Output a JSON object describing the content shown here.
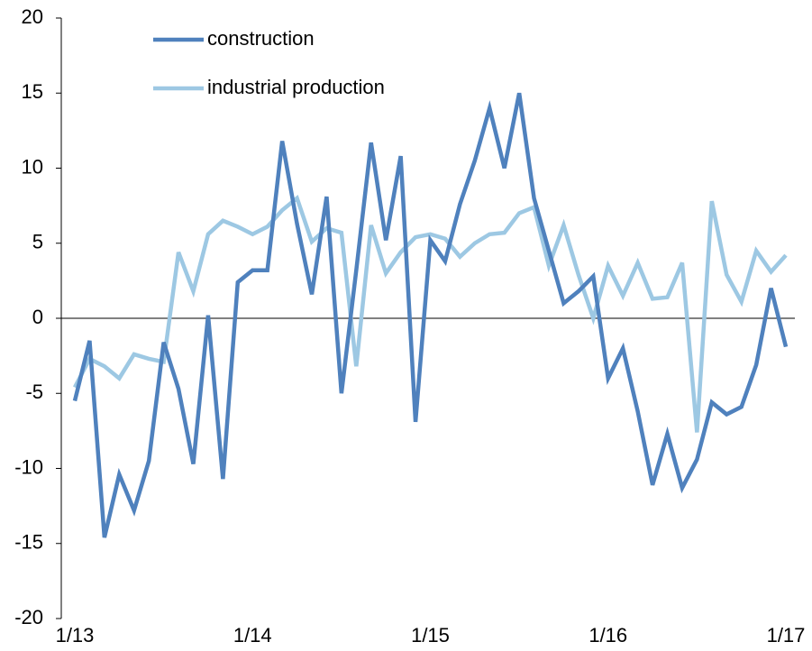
{
  "chart_data": {
    "type": "line",
    "categories": [
      "1/13",
      null,
      null,
      null,
      null,
      null,
      null,
      null,
      null,
      null,
      null,
      null,
      "1/14",
      null,
      null,
      null,
      null,
      null,
      null,
      null,
      null,
      null,
      null,
      null,
      "1/15",
      null,
      null,
      null,
      null,
      null,
      null,
      null,
      null,
      null,
      null,
      null,
      "1/16",
      null,
      null,
      null,
      null,
      null,
      null,
      null,
      null,
      null,
      null,
      null,
      "1/17"
    ],
    "series": [
      {
        "name": "construction",
        "color": "#4f81bd",
        "values": [
          -5.5,
          -1.5,
          -14.6,
          -10.4,
          -12.8,
          -9.5,
          -1.6,
          -4.7,
          -9.7,
          0.2,
          -10.7,
          2.4,
          3.2,
          3.2,
          11.8,
          6.3,
          1.6,
          8.1,
          -5,
          3.2,
          11.7,
          5.2,
          10.8,
          -6.9,
          5.2,
          3.8,
          7.6,
          10.5,
          14,
          10,
          15,
          8,
          4.5,
          1,
          1.8,
          2.8,
          -4,
          -2,
          -6.2,
          -11.1,
          -7.7,
          -11.3,
          -9.4,
          -5.6,
          -6.4,
          -5.9,
          -3.1,
          2,
          -1.9
        ]
      },
      {
        "name": "industrial production",
        "color": "#9dc8e3",
        "values": [
          -4.6,
          -2.7,
          -3.2,
          -4,
          -2.4,
          -2.7,
          -2.9,
          4.4,
          1.8,
          5.6,
          6.5,
          6.1,
          5.6,
          6.1,
          7.2,
          8,
          5.1,
          6,
          5.7,
          -3.2,
          6.2,
          3,
          4.4,
          5.4,
          5.6,
          5.3,
          4.1,
          5,
          5.6,
          5.7,
          7,
          7.4,
          3.5,
          6.2,
          2.9,
          0,
          3.5,
          1.5,
          3.7,
          1.3,
          1.4,
          3.7,
          -7.6,
          7.8,
          2.9,
          1.1,
          4.5,
          3.1,
          4.2
        ]
      }
    ],
    "ylim": [
      -20,
      20
    ],
    "yticks": [
      -20,
      -15,
      -10,
      -5,
      0,
      5,
      10,
      15,
      20
    ],
    "zero_line": true,
    "legend": "top-left"
  }
}
